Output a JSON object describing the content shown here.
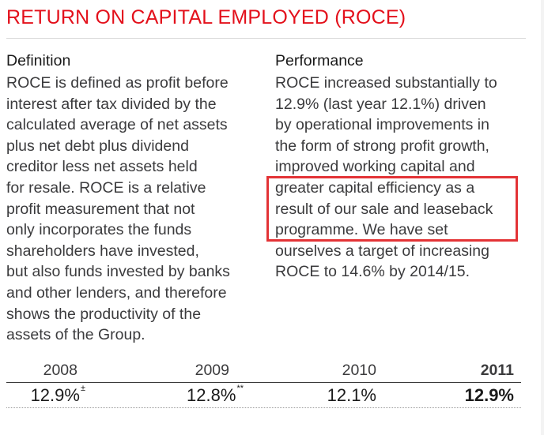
{
  "title": "RETURN ON CAPITAL EMPLOYED (ROCE)",
  "definition": {
    "heading": "Definition",
    "lines": [
      "ROCE is defined as profit before",
      "interest after tax divided by the",
      "calculated average of net assets",
      "plus net debt plus dividend",
      "creditor less net assets held",
      "for resale. ROCE is a relative",
      "profit measurement that not",
      "only incorporates the funds",
      "shareholders have invested,",
      "but also funds invested by banks",
      "and other lenders, and therefore",
      "shows the productivity of the",
      "assets of the Group."
    ]
  },
  "performance": {
    "heading": "Performance",
    "lines": [
      "ROCE increased substantially to",
      "12.9% (last year 12.1%) driven",
      "by operational improvements in",
      "the form of strong profit growth,",
      "improved working capital and",
      "greater capital efficiency as a",
      "result of our sale and leaseback",
      "programme. We have set",
      "ourselves a target of increasing",
      "ROCE to 14.6% by 2014/15."
    ]
  },
  "table": {
    "years": [
      "2008",
      "2009",
      "2010",
      "2011"
    ],
    "values": [
      "12.9%",
      "12.8%",
      "12.1%",
      "12.9%"
    ],
    "footnote_marks": [
      "±",
      "**",
      "",
      ""
    ]
  },
  "colors": {
    "title": "#e3101b",
    "highlight_box": "#e33336",
    "body_text": "#3b3b3d"
  }
}
